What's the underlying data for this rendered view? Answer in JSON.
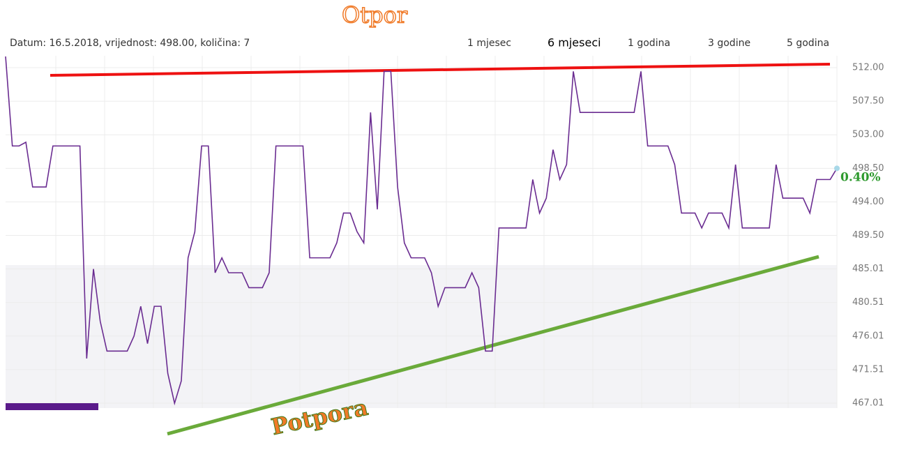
{
  "chart_data": {
    "type": "line",
    "header": "Datum: 16.5.2018, vrijednost: 498.00, količina: 7",
    "ranges": [
      "1 mjesec",
      "6 mjeseci",
      "1 godina",
      "3 godine",
      "5 godina"
    ],
    "change_label": "0.40%",
    "annotations": [
      "Otpor",
      "Potpora"
    ],
    "color": "#6a2c91",
    "values": [
      513.5,
      501.5,
      501.5,
      502,
      496,
      496,
      496,
      501.5,
      501.5,
      501.5,
      501.5,
      501.5,
      473,
      485,
      478,
      474,
      474,
      474,
      474,
      476,
      480,
      475,
      480,
      480,
      471,
      467,
      470,
      486.5,
      490,
      501.5,
      501.5,
      484.5,
      486.5,
      484.5,
      484.5,
      484.5,
      482.5,
      482.5,
      482.5,
      484.5,
      501.5,
      501.5,
      501.5,
      501.5,
      501.5,
      486.5,
      486.5,
      486.5,
      486.5,
      488.5,
      492.5,
      492.5,
      490,
      488.5,
      506,
      493,
      511.5,
      511.5,
      496,
      488.5,
      486.5,
      486.5,
      486.5,
      484.5,
      480,
      482.5,
      482.5,
      482.5,
      482.5,
      484.5,
      482.5,
      474,
      474,
      490.5,
      490.5,
      490.5,
      490.5,
      490.5,
      497,
      492.5,
      494.5,
      501,
      497,
      499,
      511.5,
      506,
      506,
      506,
      506,
      506,
      506,
      506,
      506,
      506,
      511.5,
      501.5,
      501.5,
      501.5,
      501.5,
      499,
      492.5,
      492.5,
      492.5,
      490.5,
      492.5,
      492.5,
      492.5,
      490.5,
      499,
      490.5,
      490.5,
      490.5,
      490.5,
      490.5,
      499,
      494.5,
      494.5,
      494.5,
      494.5,
      492.5,
      497,
      497,
      497,
      498.5
    ],
    "ylim": [
      467.01,
      512
    ],
    "yticks": [
      {
        "value": 512,
        "label": "512.00"
      },
      {
        "value": 507.5,
        "label": "507.50"
      },
      {
        "value": 503,
        "label": "503.00"
      },
      {
        "value": 498.5,
        "label": "498.50"
      },
      {
        "value": 494,
        "label": "494.00"
      },
      {
        "value": 489.5,
        "label": "489.50"
      },
      {
        "value": 485.01,
        "label": "485.01"
      },
      {
        "value": 480.51,
        "label": "480.51"
      },
      {
        "value": 476.01,
        "label": "476.01"
      },
      {
        "value": 471.51,
        "label": "471.51"
      },
      {
        "value": 467.01,
        "label": "467.01"
      }
    ],
    "grid": true
  }
}
